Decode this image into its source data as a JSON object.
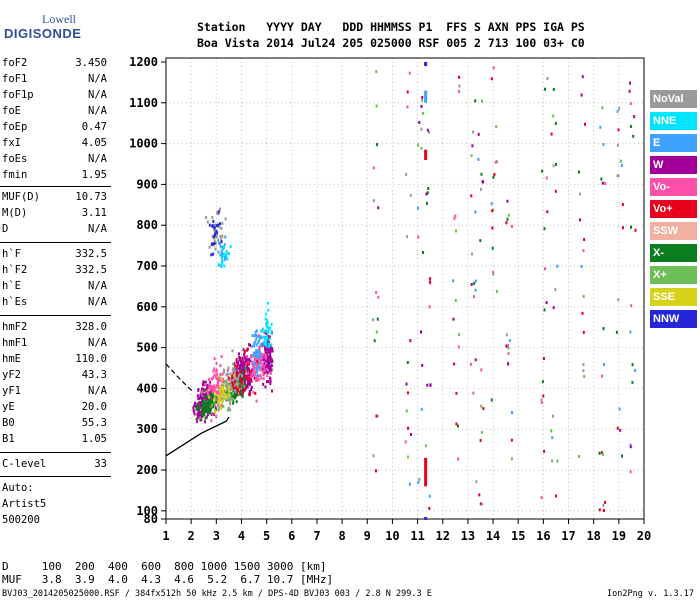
{
  "logo": {
    "top": "Lowell",
    "bottom": "DIGISONDE"
  },
  "header": {
    "line1": "Station   YYYY DAY   DDD HHMMSS P1  FFS S AXN PPS IGA PS",
    "line2": "Boa Vista 2014 Jul24 205 025000 RSF 005 2 713 100 03+ C0"
  },
  "params": [
    {
      "k": "foF2",
      "v": "3.450"
    },
    {
      "k": "foF1",
      "v": "N/A"
    },
    {
      "k": "foF1p",
      "v": "N/A"
    },
    {
      "k": "foE",
      "v": "N/A"
    },
    {
      "k": "foEp",
      "v": "0.47"
    },
    {
      "k": "fxI",
      "v": "4.05"
    },
    {
      "k": "foEs",
      "v": "N/A"
    },
    {
      "k": "fmin",
      "v": "1.95"
    },
    {
      "k": "MUF(D)",
      "v": "10.73"
    },
    {
      "k": "M(D)",
      "v": "3.11"
    },
    {
      "k": "D",
      "v": "N/A"
    },
    {
      "k": "h`F",
      "v": "332.5"
    },
    {
      "k": "h`F2",
      "v": "332.5"
    },
    {
      "k": "h`E",
      "v": "N/A"
    },
    {
      "k": "h`Es",
      "v": "N/A"
    },
    {
      "k": "hmF2",
      "v": "328.0"
    },
    {
      "k": "hmF1",
      "v": "N/A"
    },
    {
      "k": "hmE",
      "v": "110.0"
    },
    {
      "k": "yF2",
      "v": "43.3"
    },
    {
      "k": "yF1",
      "v": "N/A"
    },
    {
      "k": "yE",
      "v": "20.0"
    },
    {
      "k": "B0",
      "v": "55.3"
    },
    {
      "k": "B1",
      "v": "1.05"
    },
    {
      "k": "C-level",
      "v": "33"
    }
  ],
  "auto": {
    "line1": "Auto:",
    "line2": "Artist5",
    "line3": "500200"
  },
  "legend": [
    {
      "label": "NoVal",
      "bg": "#9a9a9a",
      "fg": "#ffffff"
    },
    {
      "label": "NNE",
      "bg": "#00e5ff",
      "fg": "#ffffff"
    },
    {
      "label": "E",
      "bg": "#3fa2ff",
      "fg": "#ffffff"
    },
    {
      "label": "W",
      "bg": "#a3009a",
      "fg": "#ffffff"
    },
    {
      "label": "Vo-",
      "bg": "#ff4fa8",
      "fg": "#ffffff"
    },
    {
      "label": "Vo+",
      "bg": "#e8001c",
      "fg": "#ffffff"
    },
    {
      "label": "SSW",
      "bg": "#f2b0a2",
      "fg": "#ffffff"
    },
    {
      "label": "X-",
      "bg": "#0b7d1f",
      "fg": "#ffffff"
    },
    {
      "label": "X+",
      "bg": "#6bbf56",
      "fg": "#ffffff"
    },
    {
      "label": "SSE",
      "bg": "#d6d21c",
      "fg": "#ffffff"
    },
    {
      "label": "NNW",
      "bg": "#2626d9",
      "fg": "#ffffff"
    }
  ],
  "footer": {
    "line1": "D     100  200  400  600  800 1000 1500 3000 [km]",
    "line2": "MUF   3.8  3.9  4.0  4.3  4.6  5.2  6.7 10.7 [MHz]",
    "line3": "BVJ03_2014205025000.RSF / 384fx512h 50 kHz 2.5 km / DPS-4D BVJ03 003 / 2.8 N 299.3 E",
    "version": "Ion2Png v. 1.3.17"
  },
  "chart_data": {
    "type": "scatter",
    "xlim": [
      1,
      20
    ],
    "ylim": [
      80,
      1200
    ],
    "x_ticks": [
      1,
      2,
      3,
      4,
      5,
      6,
      7,
      8,
      9,
      10,
      11,
      12,
      13,
      14,
      15,
      16,
      17,
      18,
      19,
      20
    ],
    "y_ticks": [
      80,
      100,
      200,
      300,
      400,
      500,
      600,
      700,
      800,
      900,
      1000,
      1100,
      1200
    ],
    "grid": "dotted",
    "legend_position": "right",
    "series": [
      {
        "name": "W",
        "color": "#a3009a",
        "clusters": [
          [
            2.5,
            370,
            0.9,
            40,
            180
          ],
          [
            4.0,
            440,
            0.8,
            50,
            220
          ],
          [
            5.0,
            480,
            0.5,
            60,
            120
          ]
        ]
      },
      {
        "name": "Vo-",
        "color": "#ff4fa8",
        "clusters": [
          [
            3.0,
            400,
            1.2,
            60,
            120
          ],
          [
            4.6,
            460,
            0.7,
            60,
            90
          ]
        ]
      },
      {
        "name": "X-",
        "color": "#0b7d1f",
        "clusters": [
          [
            2.6,
            360,
            0.8,
            30,
            90
          ],
          [
            3.8,
            410,
            0.9,
            40,
            60
          ]
        ]
      },
      {
        "name": "X+",
        "color": "#6bbf56",
        "clusters": [
          [
            3.4,
            390,
            1.0,
            40,
            50
          ]
        ]
      },
      {
        "name": "E",
        "color": "#3fa2ff",
        "clusters": [
          [
            4.6,
            500,
            0.5,
            70,
            50
          ],
          [
            3.2,
            740,
            0.5,
            40,
            20
          ]
        ]
      },
      {
        "name": "NNE",
        "color": "#00e5ff",
        "clusters": [
          [
            5.0,
            540,
            0.3,
            60,
            40
          ],
          [
            3.3,
            720,
            0.4,
            30,
            15
          ]
        ]
      },
      {
        "name": "NoVal",
        "color": "#9a9a9a",
        "clusters": [
          [
            3.6,
            420,
            1.1,
            50,
            60
          ],
          [
            3.0,
            790,
            0.8,
            60,
            30
          ]
        ]
      },
      {
        "name": "Vo+",
        "color": "#e8001c",
        "clusters": [
          [
            4.0,
            430,
            1.0,
            60,
            40
          ]
        ]
      },
      {
        "name": "SSE",
        "color": "#d6d21c",
        "clusters": [
          [
            3.2,
            395,
            0.9,
            40,
            40
          ]
        ]
      },
      {
        "name": "NNW",
        "color": "#2626d9",
        "clusters": [
          [
            2.9,
            780,
            0.5,
            50,
            20
          ]
        ]
      }
    ],
    "profile": {
      "color": "#000000",
      "x": [
        1.0,
        2.4,
        3.4,
        3.5
      ],
      "y": [
        235,
        290,
        320,
        330
      ]
    },
    "profile_dashed": {
      "x": [
        1.0,
        1.6,
        2.1
      ],
      "y": [
        460,
        420,
        390
      ]
    }
  }
}
